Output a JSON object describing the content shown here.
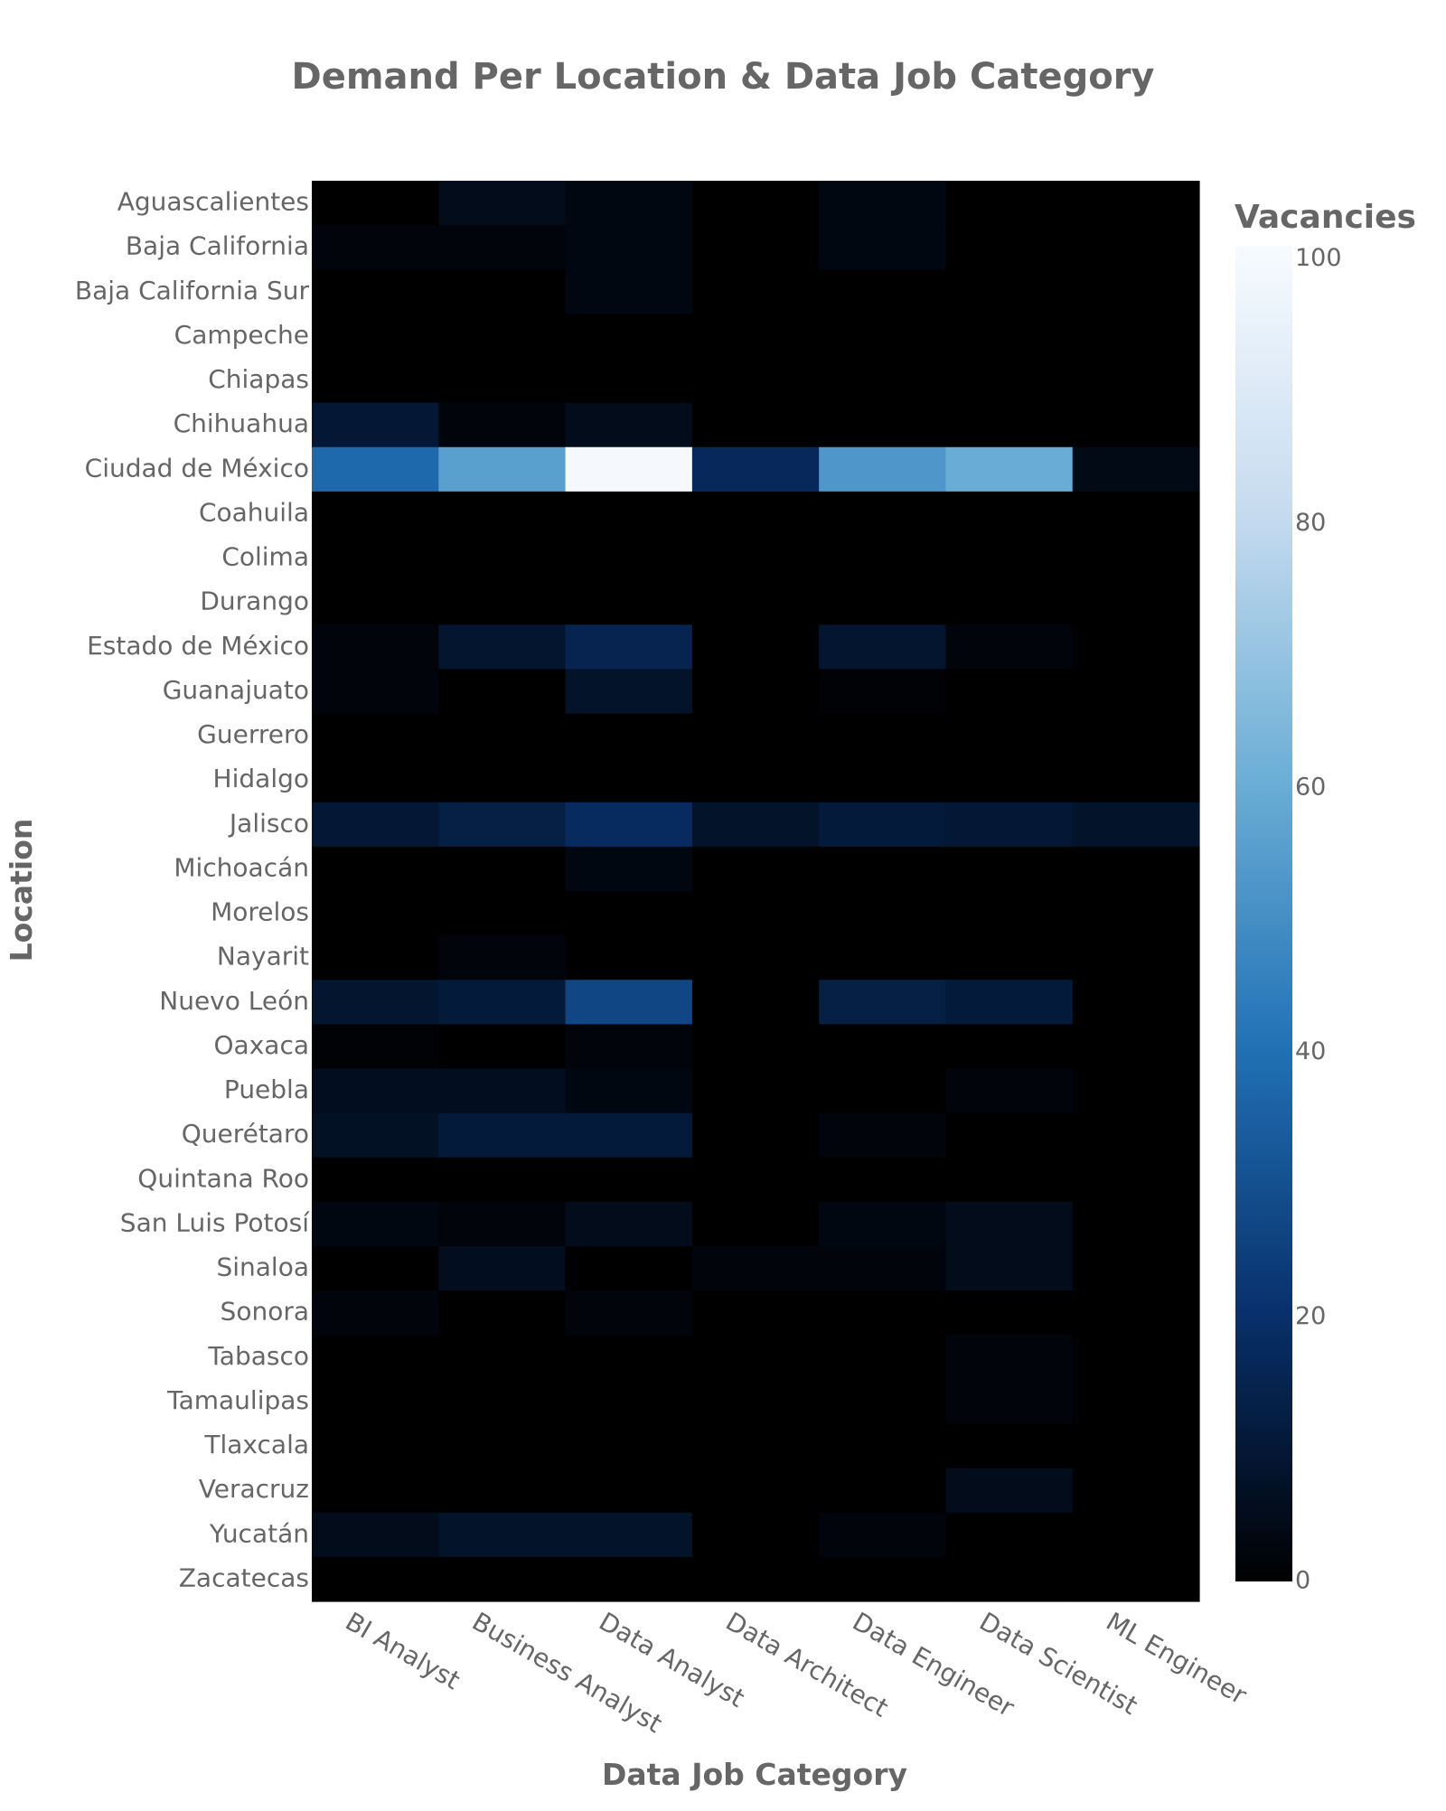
{
  "chart_data": {
    "type": "heatmap",
    "title": "Demand Per Location & Data Job Category",
    "xlabel": "Data Job Category",
    "ylabel": "Location",
    "colorbar_title": "Vacancies",
    "colorscale": [
      "#000000",
      "#08306b",
      "#2171b5",
      "#6baed6",
      "#c6dbef",
      "#f7fbff"
    ],
    "zlim": [
      0,
      101
    ],
    "colorbar_ticks": [
      0,
      20,
      40,
      60,
      80,
      100
    ],
    "x": [
      "BI Analyst",
      "Business Analyst",
      "Data Analyst",
      "Data Architect",
      "Data Engineer",
      "Data Scientist",
      "ML Engineer"
    ],
    "y": [
      "Aguascalientes",
      "Baja California",
      "Baja California Sur",
      "Campeche",
      "Chiapas",
      "Chihuahua",
      "Ciudad de México",
      "Coahuila",
      "Colima",
      "Durango",
      "Estado de México",
      "Guanajuato",
      "Guerrero",
      "Hidalgo",
      "Jalisco",
      "Michoacán",
      "Morelos",
      "Nayarit",
      "Nuevo León",
      "Oaxaca",
      "Puebla",
      "Querétaro",
      "Quintana Roo",
      "San Luis Potosí",
      "Sinaloa",
      "Sonora",
      "Tabasco",
      "Tamaulipas",
      "Tlaxcala",
      "Veracruz",
      "Yucatán",
      "Zacatecas"
    ],
    "z": [
      [
        0,
        5,
        3,
        0,
        3,
        0,
        0
      ],
      [
        2,
        2,
        3,
        0,
        3,
        0,
        0
      ],
      [
        0,
        0,
        3,
        0,
        0,
        0,
        0
      ],
      [
        0,
        0,
        0,
        0,
        0,
        0,
        0
      ],
      [
        0,
        0,
        0,
        0,
        0,
        0,
        0
      ],
      [
        10,
        2,
        5,
        0,
        0,
        0,
        0
      ],
      [
        38,
        56,
        100,
        17,
        53,
        60,
        4
      ],
      [
        0,
        0,
        0,
        0,
        0,
        0,
        0
      ],
      [
        0,
        0,
        0,
        0,
        0,
        0,
        0
      ],
      [
        0,
        0,
        0,
        0,
        0,
        0,
        0
      ],
      [
        2,
        9,
        15,
        0,
        9,
        2,
        0
      ],
      [
        2,
        0,
        8,
        0,
        1,
        0,
        0
      ],
      [
        0,
        0,
        0,
        0,
        0,
        0,
        0
      ],
      [
        0,
        0,
        0,
        0,
        0,
        0,
        0
      ],
      [
        10,
        13,
        18,
        8,
        11,
        10,
        8
      ],
      [
        0,
        0,
        3,
        0,
        0,
        0,
        0
      ],
      [
        0,
        0,
        0,
        0,
        0,
        0,
        0
      ],
      [
        0,
        2,
        0,
        0,
        0,
        0,
        0
      ],
      [
        9,
        11,
        27,
        0,
        13,
        11,
        0
      ],
      [
        1,
        0,
        2,
        0,
        0,
        0,
        0
      ],
      [
        6,
        6,
        3,
        0,
        0,
        2,
        0
      ],
      [
        7,
        11,
        11,
        0,
        2,
        0,
        0
      ],
      [
        0,
        0,
        0,
        0,
        0,
        0,
        0
      ],
      [
        3,
        2,
        5,
        0,
        3,
        5,
        0
      ],
      [
        0,
        6,
        0,
        2,
        2,
        5,
        0
      ],
      [
        2,
        0,
        2,
        0,
        0,
        0,
        0
      ],
      [
        0,
        0,
        0,
        0,
        0,
        2,
        0
      ],
      [
        0,
        0,
        0,
        0,
        0,
        2,
        0
      ],
      [
        0,
        0,
        0,
        0,
        0,
        0,
        0
      ],
      [
        0,
        0,
        0,
        0,
        0,
        5,
        0
      ],
      [
        5,
        8,
        8,
        0,
        2,
        0,
        0
      ],
      [
        0,
        0,
        0,
        0,
        0,
        0,
        0
      ]
    ]
  }
}
